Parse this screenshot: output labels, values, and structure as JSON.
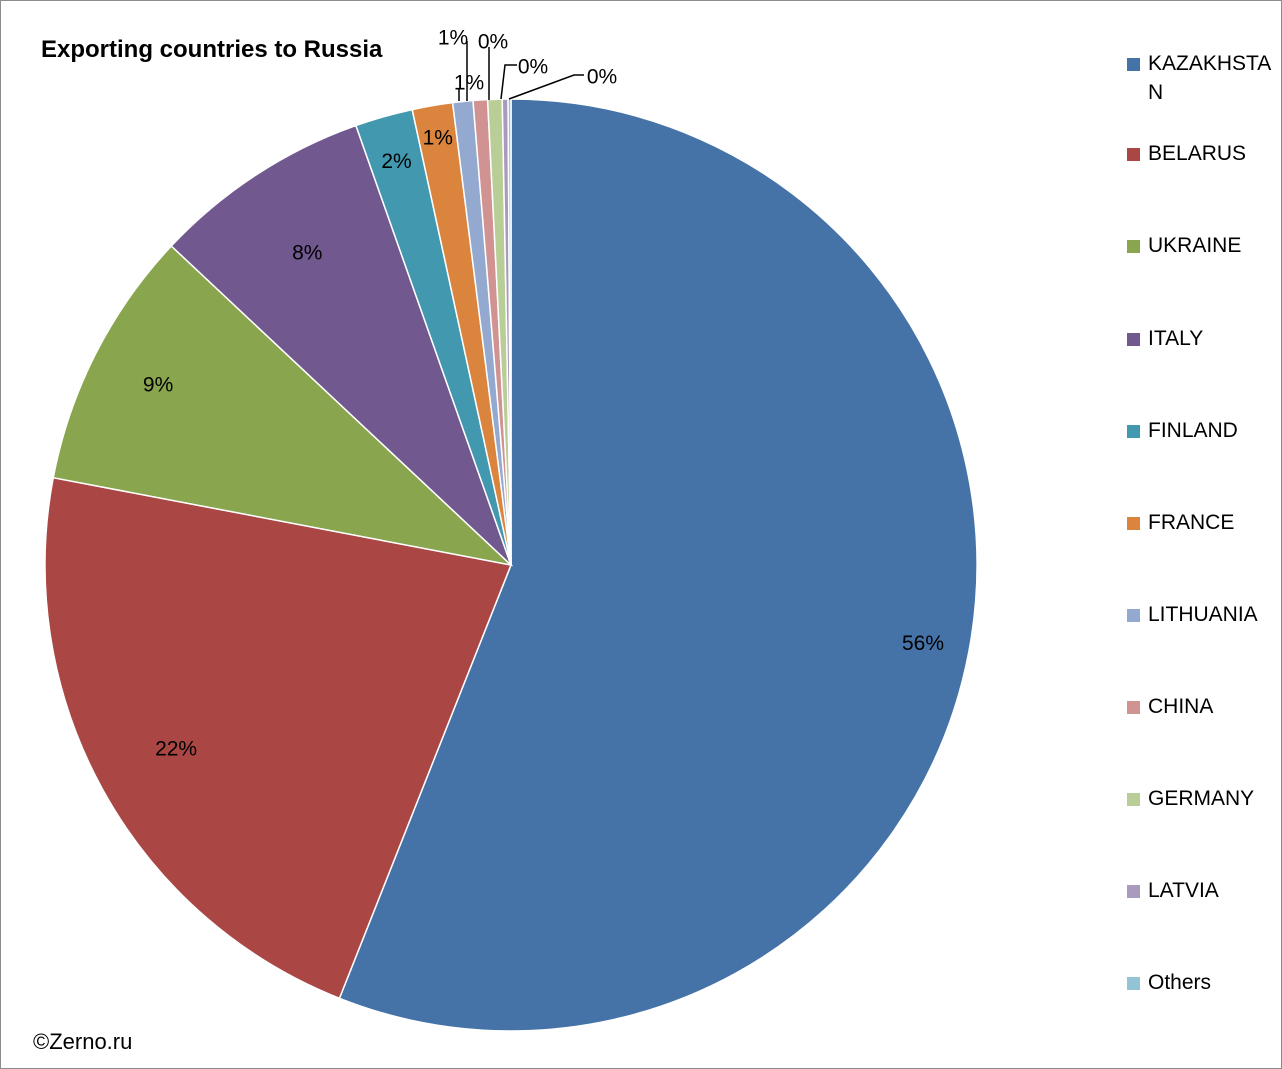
{
  "chart_data": {
    "type": "pie",
    "title": "Exporting countries to Russia",
    "categories": [
      "KAZAKHSTAN",
      "BELARUS",
      "UKRAINE",
      "ITALY",
      "FINLAND",
      "FRANCE",
      "LITHUANIA",
      "CHINA",
      "GERMANY",
      "LATVIA",
      "Others"
    ],
    "values": [
      56.0,
      22.0,
      9.0,
      7.6,
      2.0,
      1.4,
      0.7,
      0.5,
      0.5,
      0.2,
      0.1
    ],
    "labels": [
      "56%",
      "22%",
      "9%",
      "8%",
      "2%",
      "1%",
      "1%",
      "1%",
      "0%",
      "0%",
      "0%"
    ],
    "colors": [
      "#4572a7",
      "#aa4643",
      "#89a54e",
      "#71588f",
      "#4198af",
      "#db843d",
      "#93a9cf",
      "#d19392",
      "#b9cd96",
      "#a99bbd",
      "#92c4d6"
    ],
    "legend_position": "right",
    "start_angle": "top",
    "direction": "clockwise"
  },
  "credit": "©Zerno.ru"
}
